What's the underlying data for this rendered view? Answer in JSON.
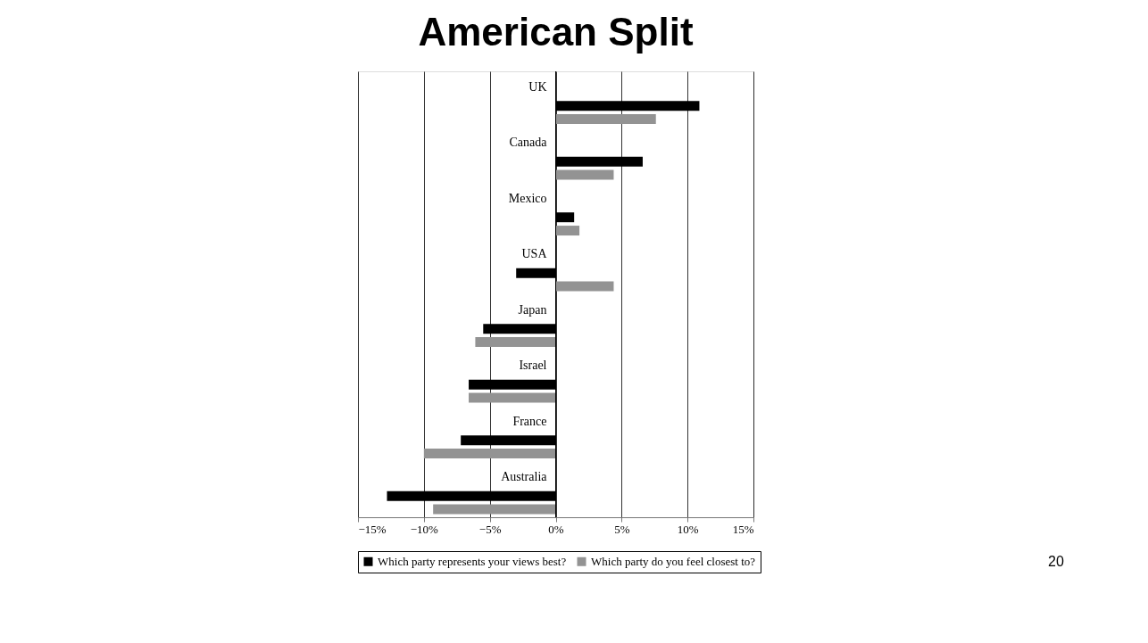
{
  "chart_data": {
    "type": "bar",
    "orientation": "horizontal",
    "title": "American Split",
    "categories": [
      "UK",
      "Canada",
      "Mexico",
      "USA",
      "Japan",
      "Israel",
      "France",
      "Australia"
    ],
    "series": [
      {
        "name": "Which party represents your views best?",
        "color": "#000000",
        "values": [
          10.9,
          6.6,
          1.4,
          -3.0,
          -5.5,
          -6.6,
          -7.2,
          -12.8
        ]
      },
      {
        "name": "Which party do you feel closest to?",
        "color": "#939393",
        "values": [
          7.6,
          4.4,
          1.8,
          4.4,
          -6.1,
          -6.6,
          -10.0,
          -9.3
        ]
      }
    ],
    "xlim": [
      -15,
      15
    ],
    "xticks": [
      {
        "value": -15,
        "label": "−15%"
      },
      {
        "value": -10,
        "label": "−10%"
      },
      {
        "value": -5,
        "label": "−5%"
      },
      {
        "value": 0,
        "label": "0%"
      },
      {
        "value": 5,
        "label": "5%"
      },
      {
        "value": 10,
        "label": "10%"
      },
      {
        "value": 15,
        "label": "15%"
      }
    ],
    "grid": "x",
    "legend": "bottom",
    "annotations": [
      "20"
    ]
  }
}
